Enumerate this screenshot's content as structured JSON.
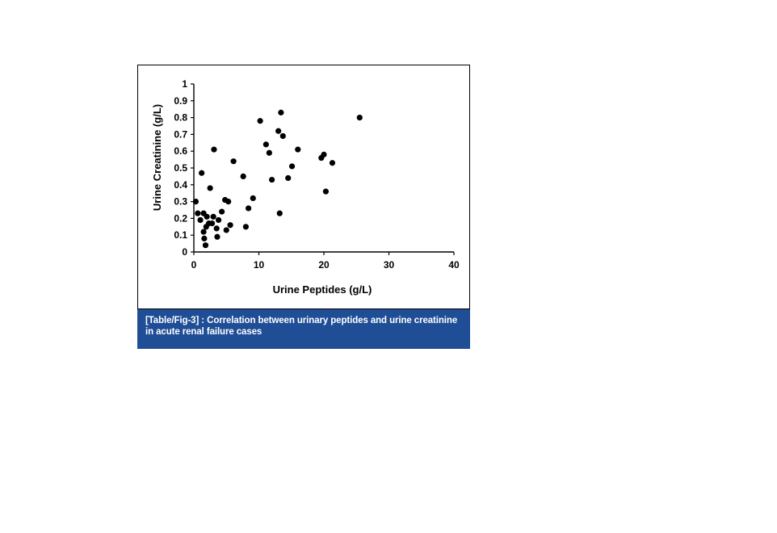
{
  "caption": "[Table/Fig-3] : Correlation between urinary peptides and urine creatinine in acute renal failure cases",
  "colors": {
    "caption_bg": "#1f4e96",
    "caption_text": "#ffffff",
    "points": "#000000"
  },
  "chart_data": {
    "type": "scatter",
    "title": "",
    "xlabel": "Urine Peptides (g/L)",
    "ylabel": "Urine Creatinine (g/L)",
    "xlim": [
      0,
      40
    ],
    "ylim": [
      0,
      1
    ],
    "xticks": [
      "0",
      "10",
      "20",
      "30",
      "40"
    ],
    "yticks": [
      "0",
      "0.1",
      "0.2",
      "0.3",
      "0.4",
      "0.5",
      "0.6",
      "0.7",
      "0.8",
      "0.9",
      "1"
    ],
    "grid": false,
    "legend": "none",
    "series": [
      {
        "points": [
          [
            0.3,
            0.3
          ],
          [
            0.6,
            0.23
          ],
          [
            1.0,
            0.19
          ],
          [
            1.2,
            0.47
          ],
          [
            1.5,
            0.12
          ],
          [
            1.5,
            0.23
          ],
          [
            1.6,
            0.08
          ],
          [
            1.8,
            0.04
          ],
          [
            1.9,
            0.15
          ],
          [
            2.0,
            0.21
          ],
          [
            2.3,
            0.17
          ],
          [
            2.5,
            0.38
          ],
          [
            2.8,
            0.17
          ],
          [
            3.0,
            0.21
          ],
          [
            3.1,
            0.61
          ],
          [
            3.5,
            0.14
          ],
          [
            3.6,
            0.09
          ],
          [
            3.8,
            0.19
          ],
          [
            4.3,
            0.24
          ],
          [
            4.8,
            0.31
          ],
          [
            5.0,
            0.13
          ],
          [
            5.3,
            0.3
          ],
          [
            5.6,
            0.16
          ],
          [
            6.1,
            0.54
          ],
          [
            7.6,
            0.45
          ],
          [
            8.0,
            0.15
          ],
          [
            8.4,
            0.26
          ],
          [
            9.1,
            0.32
          ],
          [
            10.2,
            0.78
          ],
          [
            11.1,
            0.64
          ],
          [
            11.6,
            0.59
          ],
          [
            12.0,
            0.43
          ],
          [
            13.0,
            0.72
          ],
          [
            13.2,
            0.23
          ],
          [
            13.4,
            0.83
          ],
          [
            13.7,
            0.69
          ],
          [
            14.5,
            0.44
          ],
          [
            15.1,
            0.51
          ],
          [
            16.0,
            0.61
          ],
          [
            19.6,
            0.56
          ],
          [
            20.0,
            0.58
          ],
          [
            20.3,
            0.36
          ],
          [
            21.3,
            0.53
          ],
          [
            25.5,
            0.8
          ]
        ]
      }
    ]
  }
}
